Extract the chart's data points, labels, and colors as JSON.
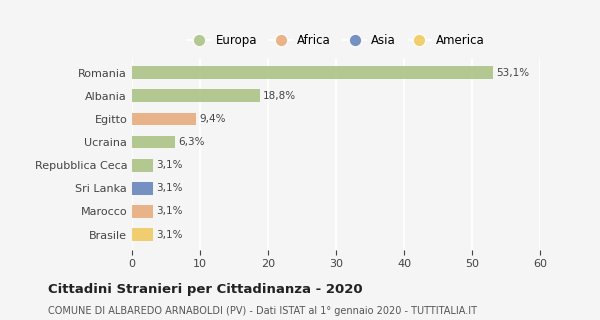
{
  "categories": [
    "Romania",
    "Albania",
    "Egitto",
    "Ucraina",
    "Repubblica Ceca",
    "Sri Lanka",
    "Marocco",
    "Brasile"
  ],
  "values": [
    53.1,
    18.8,
    9.4,
    6.3,
    3.1,
    3.1,
    3.1,
    3.1
  ],
  "labels": [
    "53,1%",
    "18,8%",
    "9,4%",
    "6,3%",
    "3,1%",
    "3,1%",
    "3,1%",
    "3,1%"
  ],
  "colors": [
    "#a8c080",
    "#a8c080",
    "#e8a878",
    "#a8c080",
    "#a8c080",
    "#6080b8",
    "#e8a878",
    "#f0c858"
  ],
  "legend_labels": [
    "Europa",
    "Africa",
    "Asia",
    "America"
  ],
  "legend_colors": [
    "#a8c080",
    "#e8a878",
    "#6080b8",
    "#f0c858"
  ],
  "xlim": [
    0,
    60
  ],
  "xticks": [
    0,
    10,
    20,
    30,
    40,
    50,
    60
  ],
  "title": "Cittadini Stranieri per Cittadinanza - 2020",
  "subtitle": "COMUNE DI ALBAREDO ARNABOLDI (PV) - Dati ISTAT al 1° gennaio 2020 - TUTTITALIA.IT",
  "bg_color": "#f5f5f5",
  "grid_color": "#ffffff",
  "bar_height": 0.55
}
